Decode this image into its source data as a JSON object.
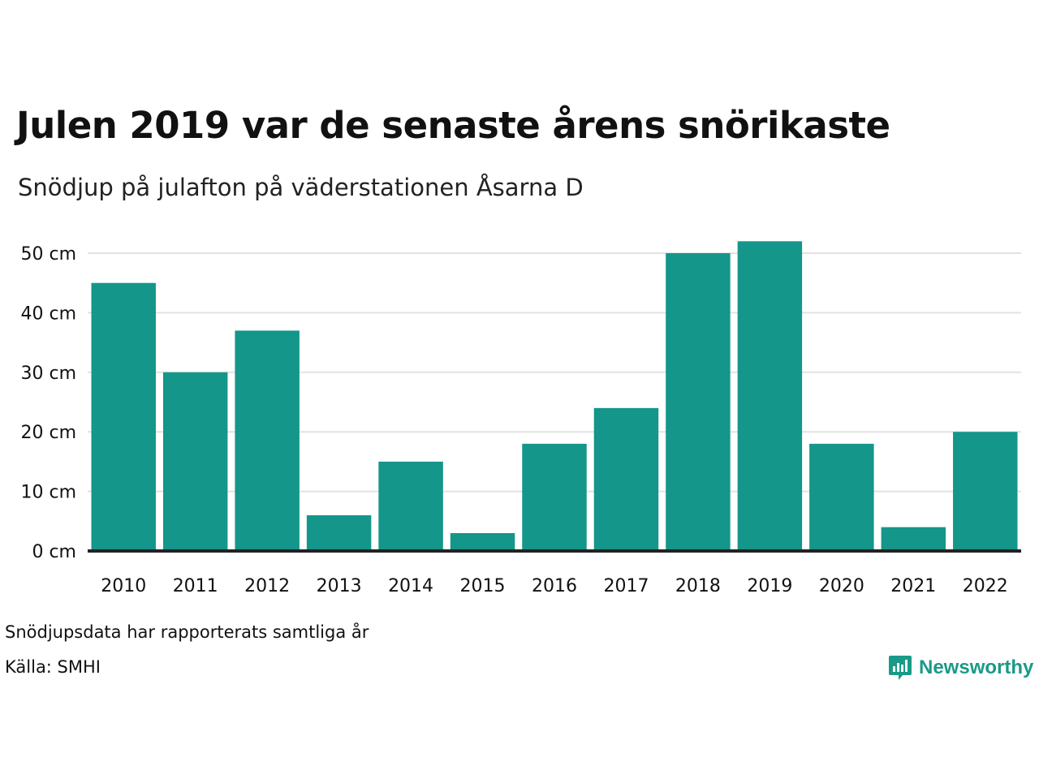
{
  "chart_data": {
    "type": "bar",
    "title": "Julen 2019 var de senaste årens snörikaste",
    "subtitle": "Snödjup på julafton på väderstationen Åsarna D",
    "categories": [
      "2010",
      "2011",
      "2012",
      "2013",
      "2014",
      "2015",
      "2016",
      "2017",
      "2018",
      "2019",
      "2020",
      "2021",
      "2022"
    ],
    "values": [
      45,
      30,
      37,
      6,
      15,
      3,
      18,
      24,
      50,
      52,
      18,
      4,
      20
    ],
    "yticks": [
      "0 cm",
      "10 cm",
      "20 cm",
      "30 cm",
      "40 cm",
      "50 cm"
    ],
    "ylim": [
      0,
      50
    ],
    "grid": true,
    "bar_color": "#14968a"
  },
  "footer": {
    "note": "Snödjupsdata har rapporterats samtliga år",
    "source": "Källa: SMHI",
    "brand": "Newsworthy",
    "brand_icon": "bar-chart-speech-bubble-icon",
    "brand_color": "#1a9a87"
  }
}
